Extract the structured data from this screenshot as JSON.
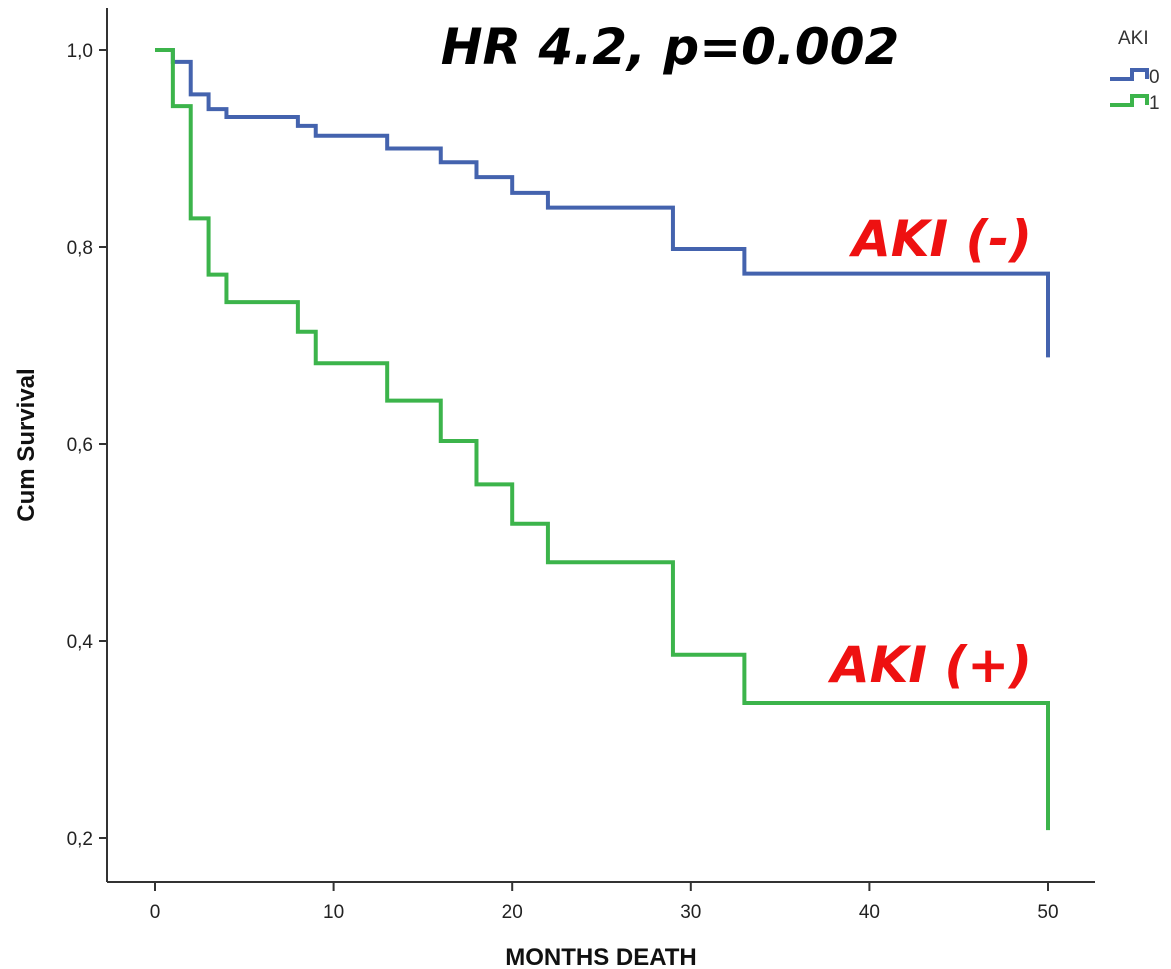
{
  "chart_data": {
    "type": "line",
    "title": "",
    "xlabel": "MONTHS DEATH",
    "ylabel": "Cum Survival",
    "xlim": [
      0,
      53
    ],
    "ylim": [
      0.16,
      1.04
    ],
    "x_ticks": [
      0,
      10,
      20,
      30,
      40,
      50
    ],
    "x_tick_labels": [
      "0",
      "10",
      "20",
      "30",
      "40",
      "50"
    ],
    "y_ticks": [
      0.2,
      0.4,
      0.6,
      0.8,
      1.0
    ],
    "y_tick_labels": [
      "0,2",
      "0,4",
      "0,6",
      "0,8",
      "1,0"
    ],
    "grid": false,
    "legend": {
      "title": "AKI",
      "placement": "top-right",
      "entries": [
        {
          "label": "0",
          "color": "#4463ae"
        },
        {
          "label": "1",
          "color": "#3cb44b"
        }
      ]
    },
    "annotations": [
      {
        "text": "HR 4.2, p=0.002",
        "color": "#000000"
      },
      {
        "text": "AKI (-)",
        "color": "#ee1111"
      },
      {
        "text": "AKI (+)",
        "color": "#ee1111"
      }
    ],
    "series": [
      {
        "name": "0",
        "color": "#4463ae",
        "step": "post",
        "x": [
          0,
          1,
          2,
          3,
          4,
          8,
          9,
          13,
          16,
          18,
          20,
          22,
          29,
          33,
          50
        ],
        "y": [
          1.0,
          0.988,
          0.955,
          0.94,
          0.932,
          0.923,
          0.913,
          0.9,
          0.886,
          0.871,
          0.855,
          0.84,
          0.798,
          0.773,
          0.688
        ]
      },
      {
        "name": "1",
        "color": "#3cb44b",
        "step": "post",
        "x": [
          0,
          1,
          2,
          3,
          4,
          8,
          9,
          13,
          16,
          18,
          20,
          22,
          29,
          33,
          50
        ],
        "y": [
          1.0,
          0.943,
          0.829,
          0.772,
          0.744,
          0.714,
          0.682,
          0.644,
          0.603,
          0.559,
          0.519,
          0.48,
          0.386,
          0.337,
          0.208
        ]
      }
    ]
  }
}
